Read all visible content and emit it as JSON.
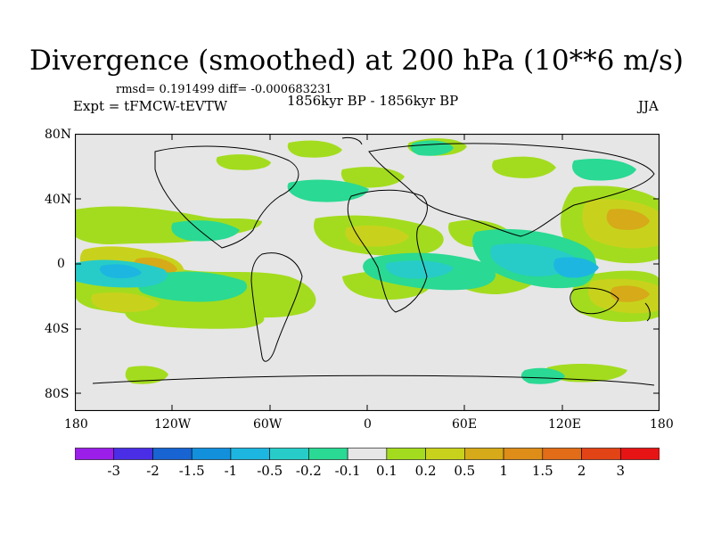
{
  "plot": {
    "title": "Divergence (smoothed) at 200 hPa (10**6 m/s)",
    "stats": "rmsd= 0.191499 diff= -0.000683231",
    "experiment": "Expt = tFMCW-tEVTW",
    "period": "1856kyr BP - 1856kyr BP",
    "season": "JJA"
  },
  "axes": {
    "lat_ticks": [
      "80N",
      "40N",
      "0",
      "40S",
      "80S"
    ],
    "lon_ticks": [
      "180",
      "120W",
      "60W",
      "0",
      "60E",
      "120E",
      "180"
    ]
  },
  "colorbar": {
    "labels": [
      "-3",
      "-2",
      "-1.5",
      "-1",
      "-0.5",
      "-0.2",
      "-0.1",
      "0.1",
      "0.2",
      "0.5",
      "1",
      "1.5",
      "2",
      "3"
    ],
    "colors": [
      "#9b1fe8",
      "#4a2ee6",
      "#1764d2",
      "#1290dc",
      "#1db6e0",
      "#27ccc8",
      "#2ad993",
      "#e6e6e6",
      "#a3dc1e",
      "#c8d21c",
      "#d6aa18",
      "#dd8d18",
      "#e26c17",
      "#e34416",
      "#e61414"
    ]
  }
}
